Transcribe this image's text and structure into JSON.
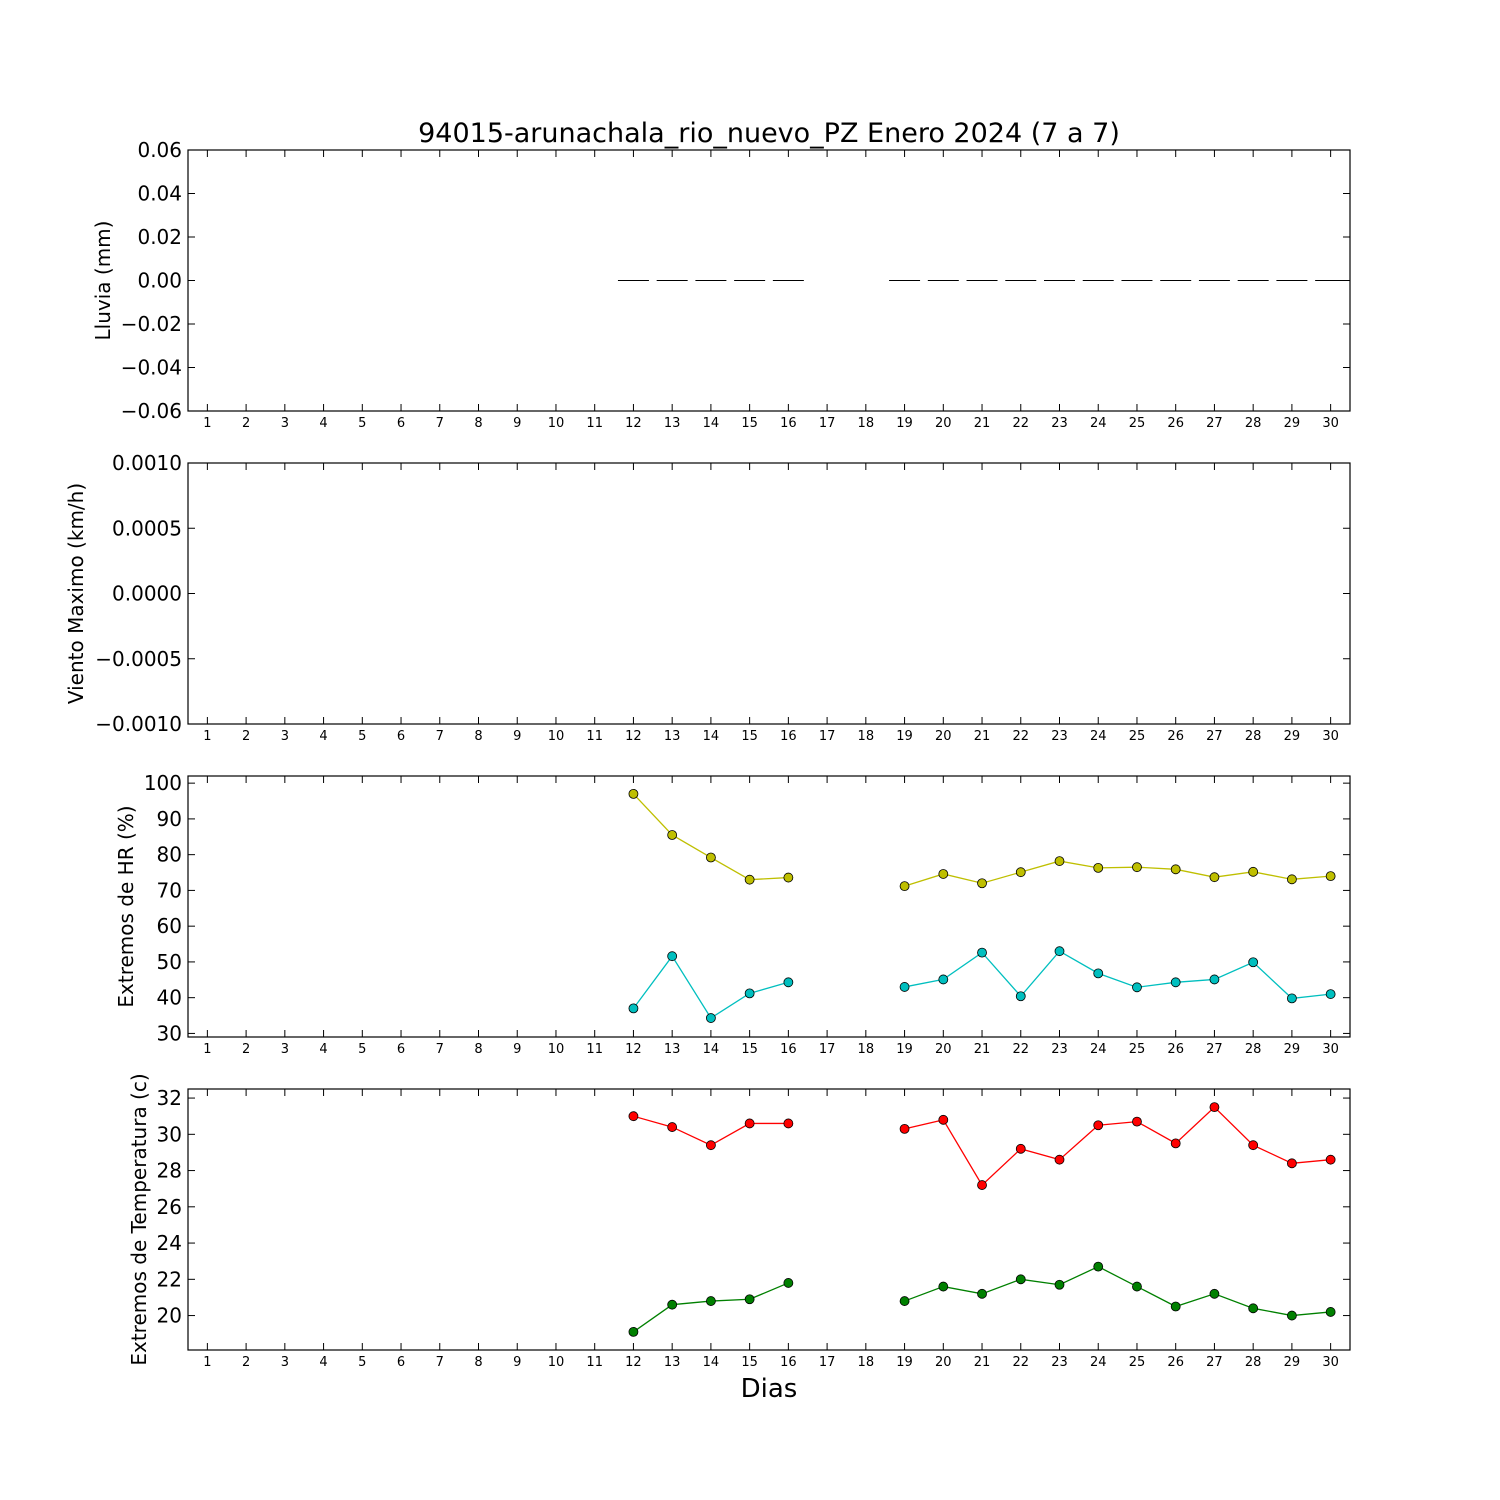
{
  "figure": {
    "title": "94015-arunachala_rio_nuevo_PZ Enero 2024  (7 a 7)",
    "xlabel": "Dias"
  },
  "chart_data": [
    {
      "type": "bar",
      "ylabel": "Lluvia (mm)",
      "x": [
        12,
        13,
        14,
        15,
        16,
        19,
        20,
        21,
        22,
        23,
        24,
        25,
        26,
        27,
        28,
        29,
        30
      ],
      "values": [
        0,
        0,
        0,
        0,
        0,
        0,
        0,
        0,
        0,
        0,
        0,
        0,
        0,
        0,
        0,
        0,
        0
      ],
      "xticks": [
        1,
        2,
        3,
        4,
        5,
        6,
        7,
        8,
        9,
        10,
        11,
        12,
        13,
        14,
        15,
        16,
        17,
        18,
        19,
        20,
        21,
        22,
        23,
        24,
        25,
        26,
        27,
        28,
        29,
        30
      ],
      "xlim": [
        0.5,
        30.5
      ],
      "ylim": [
        -0.06,
        0.06
      ],
      "yticks": [
        0.06,
        0.04,
        0.02,
        0.0,
        -0.02,
        -0.04,
        -0.06
      ],
      "ytick_labels": [
        "0.06",
        "0.04",
        "0.02",
        "0.00",
        "−0.02",
        "−0.04",
        "−0.06"
      ]
    },
    {
      "type": "line",
      "ylabel": "Viento Maximo (km/h)",
      "series": [],
      "xticks": [
        1,
        2,
        3,
        4,
        5,
        6,
        7,
        8,
        9,
        10,
        11,
        12,
        13,
        14,
        15,
        16,
        17,
        18,
        19,
        20,
        21,
        22,
        23,
        24,
        25,
        26,
        27,
        28,
        29,
        30
      ],
      "xlim": [
        0.5,
        30.5
      ],
      "ylim": [
        -0.001,
        0.001
      ],
      "yticks": [
        0.001,
        0.0005,
        0.0,
        -0.0005,
        -0.001
      ],
      "ytick_labels": [
        "0.0010",
        "0.0005",
        "0.0000",
        "−0.0005",
        "−0.0010"
      ]
    },
    {
      "type": "line",
      "ylabel": "Extremos de HR (%)",
      "series": [
        {
          "color": "#bfbf00",
          "x": [
            12,
            13,
            14,
            15,
            16,
            19,
            20,
            21,
            22,
            23,
            24,
            25,
            26,
            27,
            28,
            29,
            30
          ],
          "values": [
            97,
            85.5,
            79.2,
            73,
            73.6,
            71.2,
            74.6,
            72,
            75.1,
            78.2,
            76.3,
            76.5,
            75.9,
            73.7,
            75.2,
            73.1,
            74
          ]
        },
        {
          "color": "#00bfbf",
          "x": [
            12,
            13,
            14,
            15,
            16,
            19,
            20,
            21,
            22,
            23,
            24,
            25,
            26,
            27,
            28,
            29,
            30
          ],
          "values": [
            37,
            51.6,
            34.3,
            41.2,
            44.3,
            43,
            45.1,
            52.6,
            40.4,
            53,
            46.8,
            42.9,
            44.3,
            45.1,
            49.9,
            39.8,
            41
          ]
        }
      ],
      "xticks": [
        1,
        2,
        3,
        4,
        5,
        6,
        7,
        8,
        9,
        10,
        11,
        12,
        13,
        14,
        15,
        16,
        17,
        18,
        19,
        20,
        21,
        22,
        23,
        24,
        25,
        26,
        27,
        28,
        29,
        30
      ],
      "xlim": [
        0.5,
        30.5
      ],
      "ylim": [
        29,
        102
      ],
      "yticks": [
        100,
        90,
        80,
        70,
        60,
        50,
        40,
        30
      ],
      "ytick_labels": [
        "100",
        "90",
        "80",
        "70",
        "60",
        "50",
        "40",
        "30"
      ]
    },
    {
      "type": "line",
      "ylabel": "Extremos de Temperatura (c)",
      "series": [
        {
          "color": "#ff0000",
          "x": [
            12,
            13,
            14,
            15,
            16,
            19,
            20,
            21,
            22,
            23,
            24,
            25,
            26,
            27,
            28,
            29,
            30
          ],
          "values": [
            31,
            30.4,
            29.4,
            30.6,
            30.6,
            30.3,
            30.8,
            27.2,
            29.2,
            28.6,
            30.5,
            30.7,
            29.5,
            31.5,
            29.4,
            28.4,
            28.6
          ]
        },
        {
          "color": "#008000",
          "x": [
            12,
            13,
            14,
            15,
            16,
            19,
            20,
            21,
            22,
            23,
            24,
            25,
            26,
            27,
            28,
            29,
            30
          ],
          "values": [
            19.1,
            20.6,
            20.8,
            20.9,
            21.8,
            20.8,
            21.6,
            21.2,
            22,
            21.7,
            22.7,
            21.6,
            20.5,
            21.2,
            20.4,
            20,
            20.2
          ]
        }
      ],
      "xticks": [
        1,
        2,
        3,
        4,
        5,
        6,
        7,
        8,
        9,
        10,
        11,
        12,
        13,
        14,
        15,
        16,
        17,
        18,
        19,
        20,
        21,
        22,
        23,
        24,
        25,
        26,
        27,
        28,
        29,
        30
      ],
      "xlim": [
        0.5,
        30.5
      ],
      "ylim": [
        18.1,
        32.5
      ],
      "yticks": [
        32,
        30,
        28,
        26,
        24,
        22,
        20
      ],
      "ytick_labels": [
        "32",
        "30",
        "28",
        "26",
        "24",
        "22",
        "20"
      ]
    }
  ]
}
